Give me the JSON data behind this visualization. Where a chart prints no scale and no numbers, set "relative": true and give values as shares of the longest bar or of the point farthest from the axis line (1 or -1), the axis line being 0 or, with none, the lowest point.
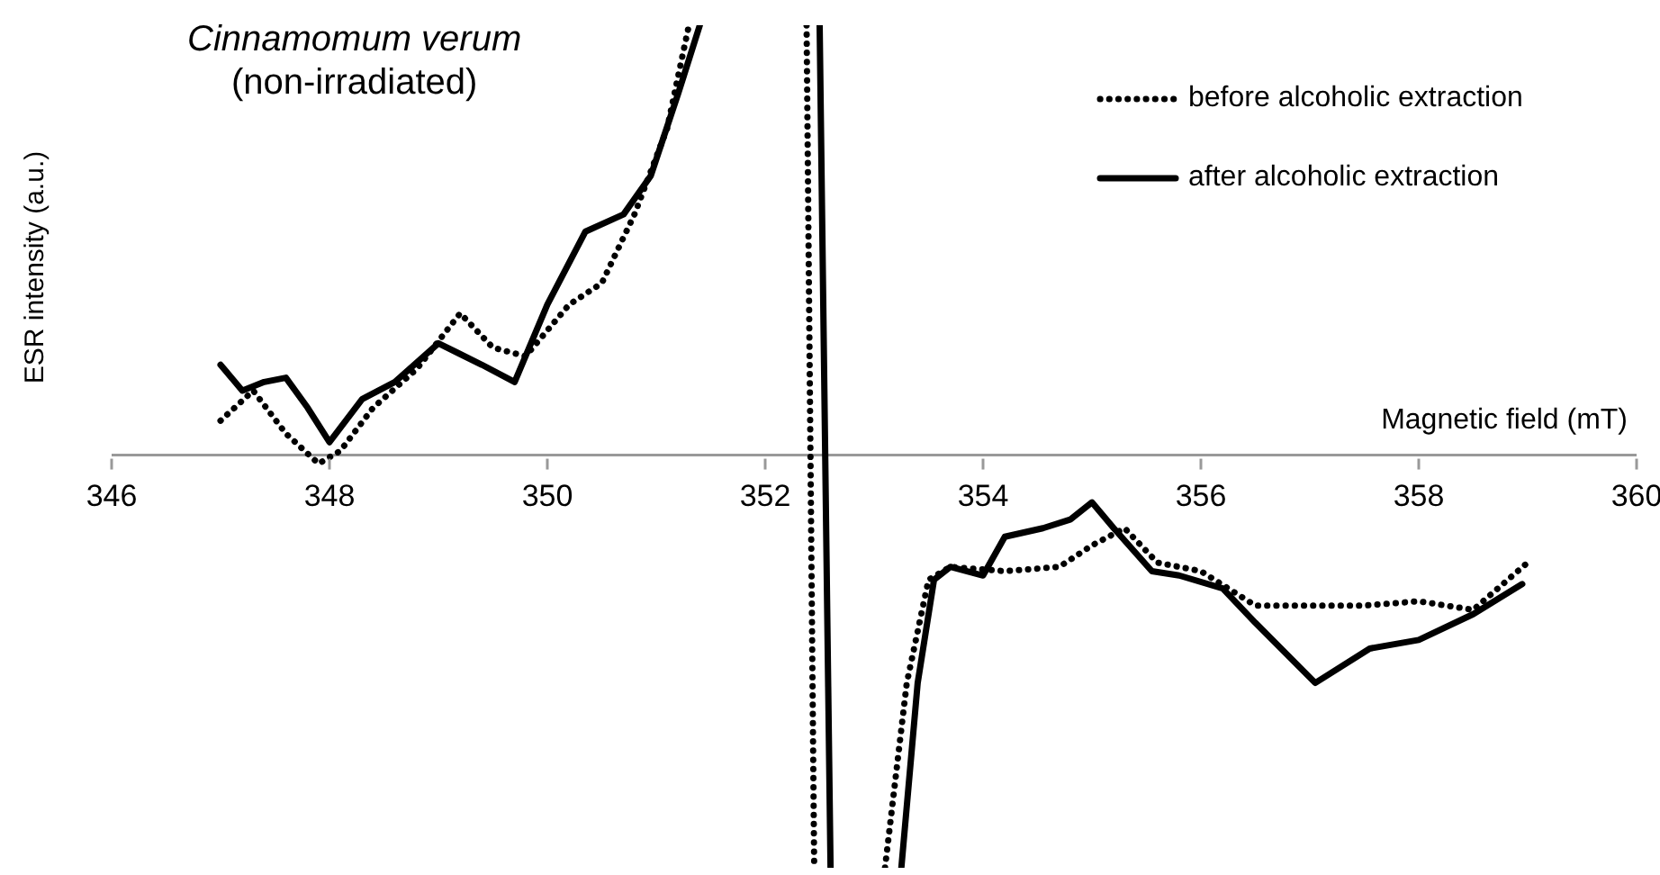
{
  "chart_data": {
    "type": "line",
    "title": "Cinnamomum verum",
    "subtitle": "(non-irradiated)",
    "xlabel": "Magnetic field (mT)",
    "ylabel": "ESR intensity (a.u.)",
    "relative": true,
    "xlim": [
      346,
      360
    ],
    "xticks": [
      346,
      348,
      350,
      352,
      354,
      356,
      358,
      360
    ],
    "legend": "top right",
    "grid": false,
    "marker": "none",
    "series": [
      {
        "name": "before alcoholic extraction",
        "color": "#000000",
        "line_style": "dotted",
        "x": [
          347.0,
          347.3,
          347.6,
          347.9,
          348.1,
          348.4,
          348.8,
          349.2,
          349.5,
          349.8,
          350.2,
          350.5,
          350.8,
          351.1,
          351.3,
          351.35,
          352.38,
          352.45,
          352.5,
          353.1,
          353.3,
          353.5,
          353.7,
          354.2,
          354.7,
          355.0,
          355.3,
          355.6,
          356.0,
          356.5,
          357.0,
          357.5,
          358.0,
          358.5,
          359.0
        ],
        "values": [
          0.08,
          0.15,
          0.05,
          -0.02,
          0.01,
          0.11,
          0.2,
          0.33,
          0.25,
          0.23,
          0.35,
          0.4,
          0.56,
          0.76,
          1.0,
          null,
          1.0,
          -0.96,
          null,
          -0.96,
          -0.53,
          -0.29,
          -0.26,
          -0.27,
          -0.26,
          -0.21,
          -0.17,
          -0.25,
          -0.27,
          -0.35,
          -0.35,
          -0.35,
          -0.34,
          -0.36,
          -0.25
        ]
      },
      {
        "name": "after alcoholic extraction",
        "color": "#000000",
        "line_style": "solid",
        "x": [
          347.0,
          347.2,
          347.4,
          347.6,
          347.8,
          348.0,
          348.3,
          348.6,
          349.0,
          349.4,
          349.7,
          350.0,
          350.35,
          350.7,
          350.95,
          351.2,
          351.4,
          351.45,
          352.5,
          352.6,
          352.65,
          353.25,
          353.4,
          353.55,
          353.7,
          354.0,
          354.2,
          354.55,
          354.8,
          355.0,
          355.2,
          355.55,
          355.8,
          356.2,
          356.5,
          357.05,
          357.55,
          358.0,
          358.5,
          358.95
        ],
        "values": [
          0.21,
          0.15,
          0.17,
          0.18,
          0.11,
          0.03,
          0.13,
          0.17,
          0.26,
          0.21,
          0.17,
          0.35,
          0.52,
          0.56,
          0.65,
          0.84,
          1.0,
          null,
          1.0,
          -0.96,
          null,
          -0.96,
          -0.53,
          -0.29,
          -0.26,
          -0.28,
          -0.19,
          -0.17,
          -0.15,
          -0.11,
          -0.17,
          -0.27,
          -0.28,
          -0.31,
          -0.39,
          -0.53,
          -0.45,
          -0.43,
          -0.37,
          -0.3
        ]
      }
    ]
  }
}
